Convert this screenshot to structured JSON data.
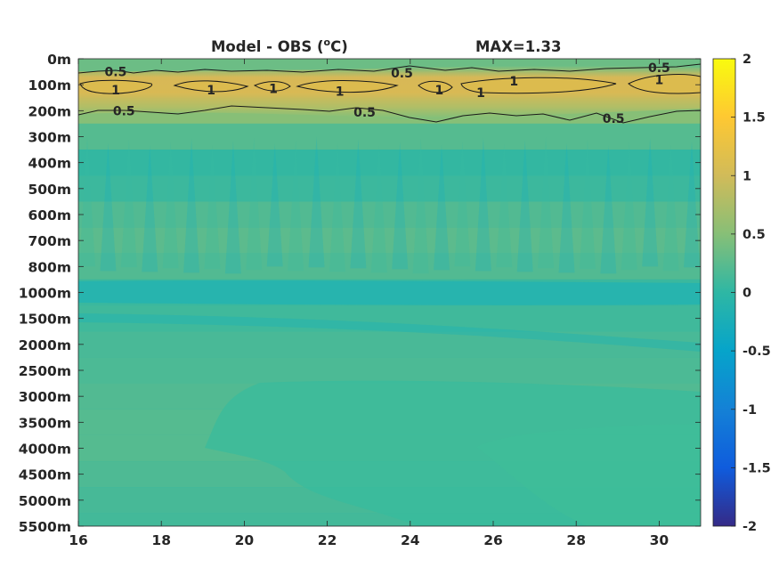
{
  "chart_data": {
    "type": "heatmap",
    "title_left": "Model - OBS (",
    "title_unit_sup": "o",
    "title_unit_rest": "C)",
    "title_right": "MAX=1.33",
    "xlim": [
      16,
      31
    ],
    "x_ticks": [
      "16",
      "18",
      "20",
      "22",
      "24",
      "26",
      "28",
      "30"
    ],
    "x_tick_values": [
      16,
      18,
      20,
      22,
      24,
      26,
      28,
      30
    ],
    "y_ticks": [
      "0m",
      "100m",
      "200m",
      "300m",
      "400m",
      "500m",
      "600m",
      "700m",
      "800m",
      "1000m",
      "1500m",
      "2000m",
      "2500m",
      "3000m",
      "3500m",
      "4000m",
      "4500m",
      "5000m",
      "5500m"
    ],
    "colorbar": {
      "range": [
        -2,
        2
      ],
      "ticks": [
        "2",
        "1.5",
        "1",
        "0.5",
        "0",
        "-0.5",
        "-1",
        "-1.5",
        "-2"
      ],
      "tick_values": [
        2,
        1.5,
        1,
        0.5,
        0,
        -0.5,
        -1,
        -1.5,
        -2
      ],
      "colormap": "parula"
    },
    "contour_levels": [
      0.5,
      1
    ],
    "contour_labels": [
      {
        "text": "0.5",
        "x": 16.9,
        "depth_index": 0.5
      },
      {
        "text": "0.5",
        "x": 23.8,
        "depth_index": 0.55
      },
      {
        "text": "0.5",
        "x": 30.0,
        "depth_index": 0.35
      },
      {
        "text": "1",
        "x": 16.9,
        "depth_index": 1.2
      },
      {
        "text": "1",
        "x": 19.2,
        "depth_index": 1.2
      },
      {
        "text": "1",
        "x": 20.7,
        "depth_index": 1.15
      },
      {
        "text": "1",
        "x": 22.3,
        "depth_index": 1.25
      },
      {
        "text": "1",
        "x": 24.7,
        "depth_index": 1.2
      },
      {
        "text": "1",
        "x": 25.7,
        "depth_index": 1.3
      },
      {
        "text": "1",
        "x": 26.5,
        "depth_index": 0.85
      },
      {
        "text": "1",
        "x": 30.0,
        "depth_index": 0.8
      },
      {
        "text": "0.5",
        "x": 17.1,
        "depth_index": 2.0
      },
      {
        "text": "0.5",
        "x": 22.9,
        "depth_index": 2.05
      },
      {
        "text": "0.5",
        "x": 28.9,
        "depth_index": 2.3
      }
    ],
    "depth_profile": [
      {
        "depth": "0m",
        "value": 0.35
      },
      {
        "depth": "100m",
        "value": 1.05
      },
      {
        "depth": "200m",
        "value": 0.5
      },
      {
        "depth": "300m",
        "value": 0.22
      },
      {
        "depth": "400m",
        "value": 0.03
      },
      {
        "depth": "500m",
        "value": 0.08
      },
      {
        "depth": "600m",
        "value": 0.2
      },
      {
        "depth": "700m",
        "value": 0.26
      },
      {
        "depth": "800m",
        "value": 0.2
      },
      {
        "depth": "1000m",
        "value": 0.07
      },
      {
        "depth": "1500m",
        "value": 0.1
      },
      {
        "depth": "2000m",
        "value": 0.15
      },
      {
        "depth": "2500m",
        "value": 0.17
      },
      {
        "depth": "3000m",
        "value": 0.2
      },
      {
        "depth": "3500m",
        "value": 0.22
      },
      {
        "depth": "4000m",
        "value": 0.22
      },
      {
        "depth": "4500m",
        "value": 0.18
      },
      {
        "depth": "5000m",
        "value": 0.14
      },
      {
        "depth": "5500m",
        "value": 0.12
      }
    ]
  }
}
